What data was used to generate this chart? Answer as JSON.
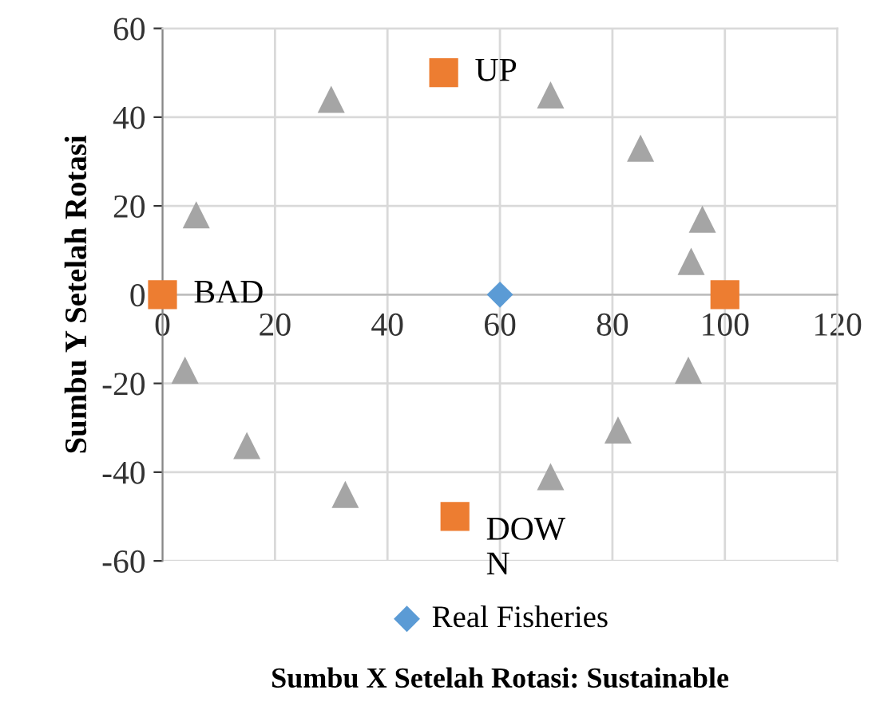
{
  "chart_data": {
    "type": "scatter",
    "xlabel": "Sumbu X Setelah Rotasi: Sustainable",
    "ylabel": "Sumbu Y Setelah Rotasi",
    "xlim": [
      0,
      120
    ],
    "ylim": [
      -60,
      60
    ],
    "xticks": [
      0,
      20,
      40,
      60,
      80,
      100,
      120
    ],
    "yticks": [
      -60,
      -40,
      -20,
      0,
      20,
      40,
      60
    ],
    "grid": true,
    "legend": "bottom",
    "series": [
      {
        "color": "#a5a5a5",
        "marker": "triangle",
        "x": [
          30,
          69,
          85,
          6,
          96,
          94,
          4,
          93.5,
          81,
          15,
          32.5,
          69
        ],
        "values": [
          44,
          45,
          33,
          18,
          17,
          7.5,
          -17,
          -17,
          -30.5,
          -34,
          -45,
          -41
        ]
      },
      {
        "color": "#ed7d31",
        "marker": "square",
        "x": [
          0,
          100,
          50,
          52
        ],
        "values": [
          0,
          0,
          50,
          -50
        ]
      },
      {
        "name": "Real Fisheries",
        "color": "#5b9bd5",
        "marker": "diamond",
        "x": [
          60
        ],
        "values": [
          0
        ]
      }
    ],
    "annotations": [
      {
        "text": "UP",
        "x": 50,
        "y": 50
      },
      {
        "text": "BAD",
        "x": 0,
        "y": 0
      },
      {
        "text": "DOW\nN",
        "x": 52,
        "y": -50
      }
    ]
  }
}
